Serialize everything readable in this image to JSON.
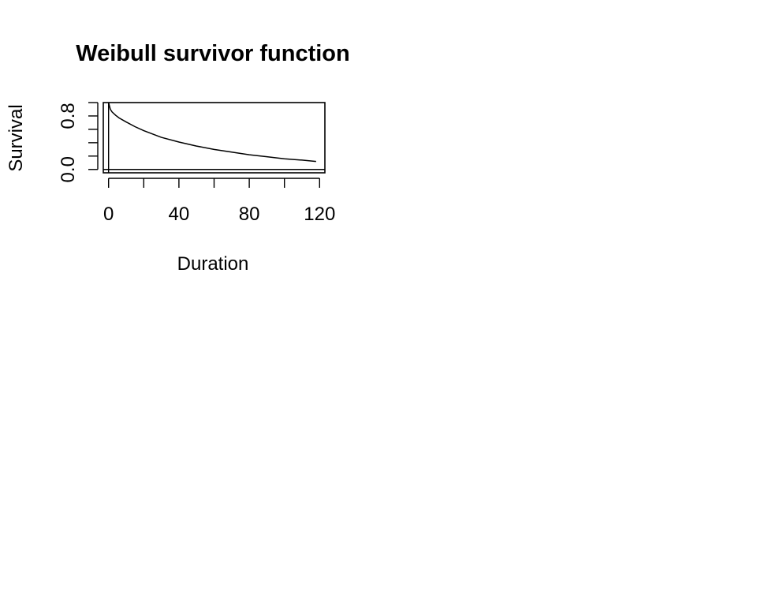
{
  "chart_data": {
    "type": "line",
    "title": "Weibull survivor function",
    "xlabel": "Duration",
    "ylabel": "Survival",
    "xlim": [
      -3,
      123
    ],
    "ylim": [
      -0.05,
      1.0
    ],
    "x_ticks": [
      0,
      20,
      40,
      60,
      80,
      100,
      120
    ],
    "x_tick_labels": [
      "0",
      "",
      "40",
      "",
      "80",
      "",
      "120"
    ],
    "y_ticks": [
      0.0,
      0.2,
      0.4,
      0.6,
      0.8,
      1.0
    ],
    "y_tick_labels": [
      "0.0",
      "",
      "",
      "",
      "0.8",
      ""
    ],
    "grid": false,
    "reference_lines": {
      "horizontal_at_y": 0,
      "vertical_at_x": 0
    },
    "x": [
      0,
      1,
      2,
      4,
      6,
      10,
      15,
      20,
      25,
      30,
      40,
      50,
      60,
      70,
      80,
      90,
      100,
      110,
      118
    ],
    "y": [
      1.0,
      0.9,
      0.86,
      0.81,
      0.77,
      0.71,
      0.64,
      0.58,
      0.53,
      0.48,
      0.41,
      0.35,
      0.3,
      0.26,
      0.22,
      0.19,
      0.16,
      0.14,
      0.12
    ],
    "line_color": "#000000"
  }
}
